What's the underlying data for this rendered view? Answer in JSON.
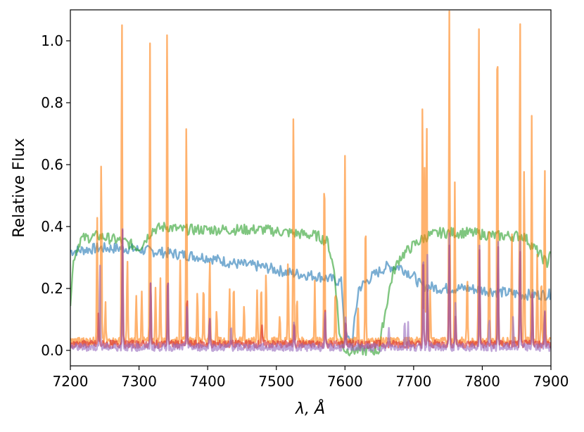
{
  "chart_data": {
    "type": "line",
    "title": "",
    "xlabel": "λ, Å",
    "ylabel": "Relative Flux",
    "xlim": [
      7200,
      7900
    ],
    "ylim": [
      -0.05,
      1.1
    ],
    "x_ticks": [
      7200,
      7300,
      7400,
      7500,
      7600,
      7700,
      7800,
      7900
    ],
    "y_ticks": [
      0.0,
      0.2,
      0.4,
      0.6,
      0.8,
      1.0
    ],
    "x_tick_labels": [
      "7200",
      "7300",
      "7400",
      "7500",
      "7600",
      "7700",
      "7800",
      "7900"
    ],
    "y_tick_labels": [
      "0.0",
      "0.2",
      "0.4",
      "0.6",
      "0.8",
      "1.0"
    ],
    "grid": false,
    "legend": "none",
    "series": [
      {
        "color": "#1f77b4",
        "opacity": 0.6,
        "x": [
          7200,
          7240,
          7280,
          7320,
          7360,
          7400,
          7440,
          7480,
          7520,
          7560,
          7580,
          7595,
          7600,
          7610,
          7620,
          7640,
          7660,
          7680,
          7700,
          7710,
          7740,
          7780,
          7820,
          7860,
          7900
        ],
        "y": [
          0.32,
          0.33,
          0.33,
          0.32,
          0.31,
          0.3,
          0.28,
          0.27,
          0.25,
          0.24,
          0.23,
          0.22,
          0.05,
          0.02,
          0.2,
          0.24,
          0.27,
          0.27,
          0.24,
          0.21,
          0.2,
          0.2,
          0.19,
          0.18,
          0.18
        ]
      },
      {
        "color": "#2ca02c",
        "opacity": 0.6,
        "x": [
          7200,
          7205,
          7215,
          7240,
          7260,
          7280,
          7300,
          7320,
          7340,
          7360,
          7400,
          7440,
          7480,
          7520,
          7560,
          7575,
          7585,
          7592,
          7600,
          7620,
          7640,
          7650,
          7655,
          7665,
          7670,
          7680,
          7700,
          7720,
          7740,
          7780,
          7820,
          7860,
          7880,
          7895,
          7900
        ],
        "y": [
          0.16,
          0.3,
          0.36,
          0.37,
          0.36,
          0.35,
          0.33,
          0.39,
          0.4,
          0.39,
          0.39,
          0.39,
          0.39,
          0.38,
          0.37,
          0.35,
          0.25,
          0.05,
          0.0,
          0.0,
          0.0,
          0.0,
          0.08,
          0.2,
          0.25,
          0.3,
          0.34,
          0.37,
          0.38,
          0.38,
          0.37,
          0.37,
          0.32,
          0.28,
          0.34
        ]
      },
      {
        "color": "#ff7f0e",
        "opacity": 0.6,
        "baseline": 0.03,
        "peaks": [
          [
            7239,
            0.46
          ],
          [
            7245,
            0.62
          ],
          [
            7251,
            0.15
          ],
          [
            7275,
            1.1
          ],
          [
            7283,
            0.3
          ],
          [
            7296,
            0.18
          ],
          [
            7304,
            0.2
          ],
          [
            7316,
            0.98
          ],
          [
            7324,
            0.2
          ],
          [
            7331,
            0.25
          ],
          [
            7341,
            1.08
          ],
          [
            7360,
            0.3
          ],
          [
            7369,
            0.75
          ],
          [
            7385,
            0.2
          ],
          [
            7394,
            0.22
          ],
          [
            7403,
            0.3
          ],
          [
            7413,
            0.12
          ],
          [
            7432,
            0.2
          ],
          [
            7438,
            0.22
          ],
          [
            7453,
            0.15
          ],
          [
            7472,
            0.2
          ],
          [
            7478,
            0.22
          ],
          [
            7485,
            0.25
          ],
          [
            7505,
            0.12
          ],
          [
            7517,
            0.3
          ],
          [
            7525,
            0.78
          ],
          [
            7530,
            0.18
          ],
          [
            7556,
            0.22
          ],
          [
            7570,
            0.6
          ],
          [
            7586,
            0.2
          ],
          [
            7600,
            0.64
          ],
          [
            7619,
            0.15
          ],
          [
            7630,
            0.43
          ],
          [
            7713,
            0.82
          ],
          [
            7716,
            0.6
          ],
          [
            7719,
            0.74
          ],
          [
            7724,
            0.2
          ],
          [
            7752,
            1.1
          ],
          [
            7760,
            0.55
          ],
          [
            7778,
            0.25
          ],
          [
            7795,
            1.1
          ],
          [
            7810,
            0.45
          ],
          [
            7822,
            1.1
          ],
          [
            7843,
            0.4
          ],
          [
            7855,
            1.1
          ],
          [
            7861,
            0.6
          ],
          [
            7872,
            0.76
          ],
          [
            7880,
            0.3
          ],
          [
            7886,
            0.25
          ],
          [
            7891,
            0.62
          ]
        ]
      },
      {
        "color": "#d62728",
        "opacity": 0.6,
        "baseline": 0.02,
        "peaks": [
          [
            7241,
            0.12
          ],
          [
            7276,
            0.4
          ],
          [
            7317,
            0.23
          ],
          [
            7342,
            0.26
          ],
          [
            7370,
            0.18
          ],
          [
            7403,
            0.1
          ],
          [
            7479,
            0.08
          ],
          [
            7526,
            0.1
          ],
          [
            7571,
            0.13
          ],
          [
            7601,
            0.1
          ],
          [
            7714,
            0.32
          ],
          [
            7720,
            0.2
          ],
          [
            7752,
            0.35
          ],
          [
            7761,
            0.12
          ],
          [
            7796,
            0.33
          ],
          [
            7823,
            0.35
          ],
          [
            7855,
            0.33
          ],
          [
            7873,
            0.2
          ],
          [
            7891,
            0.14
          ]
        ]
      },
      {
        "color": "#9467bd",
        "opacity": 0.6,
        "baseline": 0.01,
        "peaks": [
          [
            7243,
            0.3
          ],
          [
            7276,
            0.4
          ],
          [
            7317,
            0.22
          ],
          [
            7342,
            0.25
          ],
          [
            7370,
            0.17
          ],
          [
            7403,
            0.12
          ],
          [
            7434,
            0.08
          ],
          [
            7526,
            0.1
          ],
          [
            7571,
            0.14
          ],
          [
            7601,
            0.1
          ],
          [
            7664,
            0.08
          ],
          [
            7687,
            0.1
          ],
          [
            7692,
            0.09
          ],
          [
            7714,
            0.35
          ],
          [
            7720,
            0.3
          ],
          [
            7752,
            0.37
          ],
          [
            7761,
            0.15
          ],
          [
            7796,
            0.35
          ],
          [
            7810,
            0.1
          ],
          [
            7823,
            0.37
          ],
          [
            7845,
            0.1
          ],
          [
            7855,
            0.36
          ],
          [
            7873,
            0.2
          ],
          [
            7891,
            0.14
          ]
        ]
      }
    ]
  }
}
